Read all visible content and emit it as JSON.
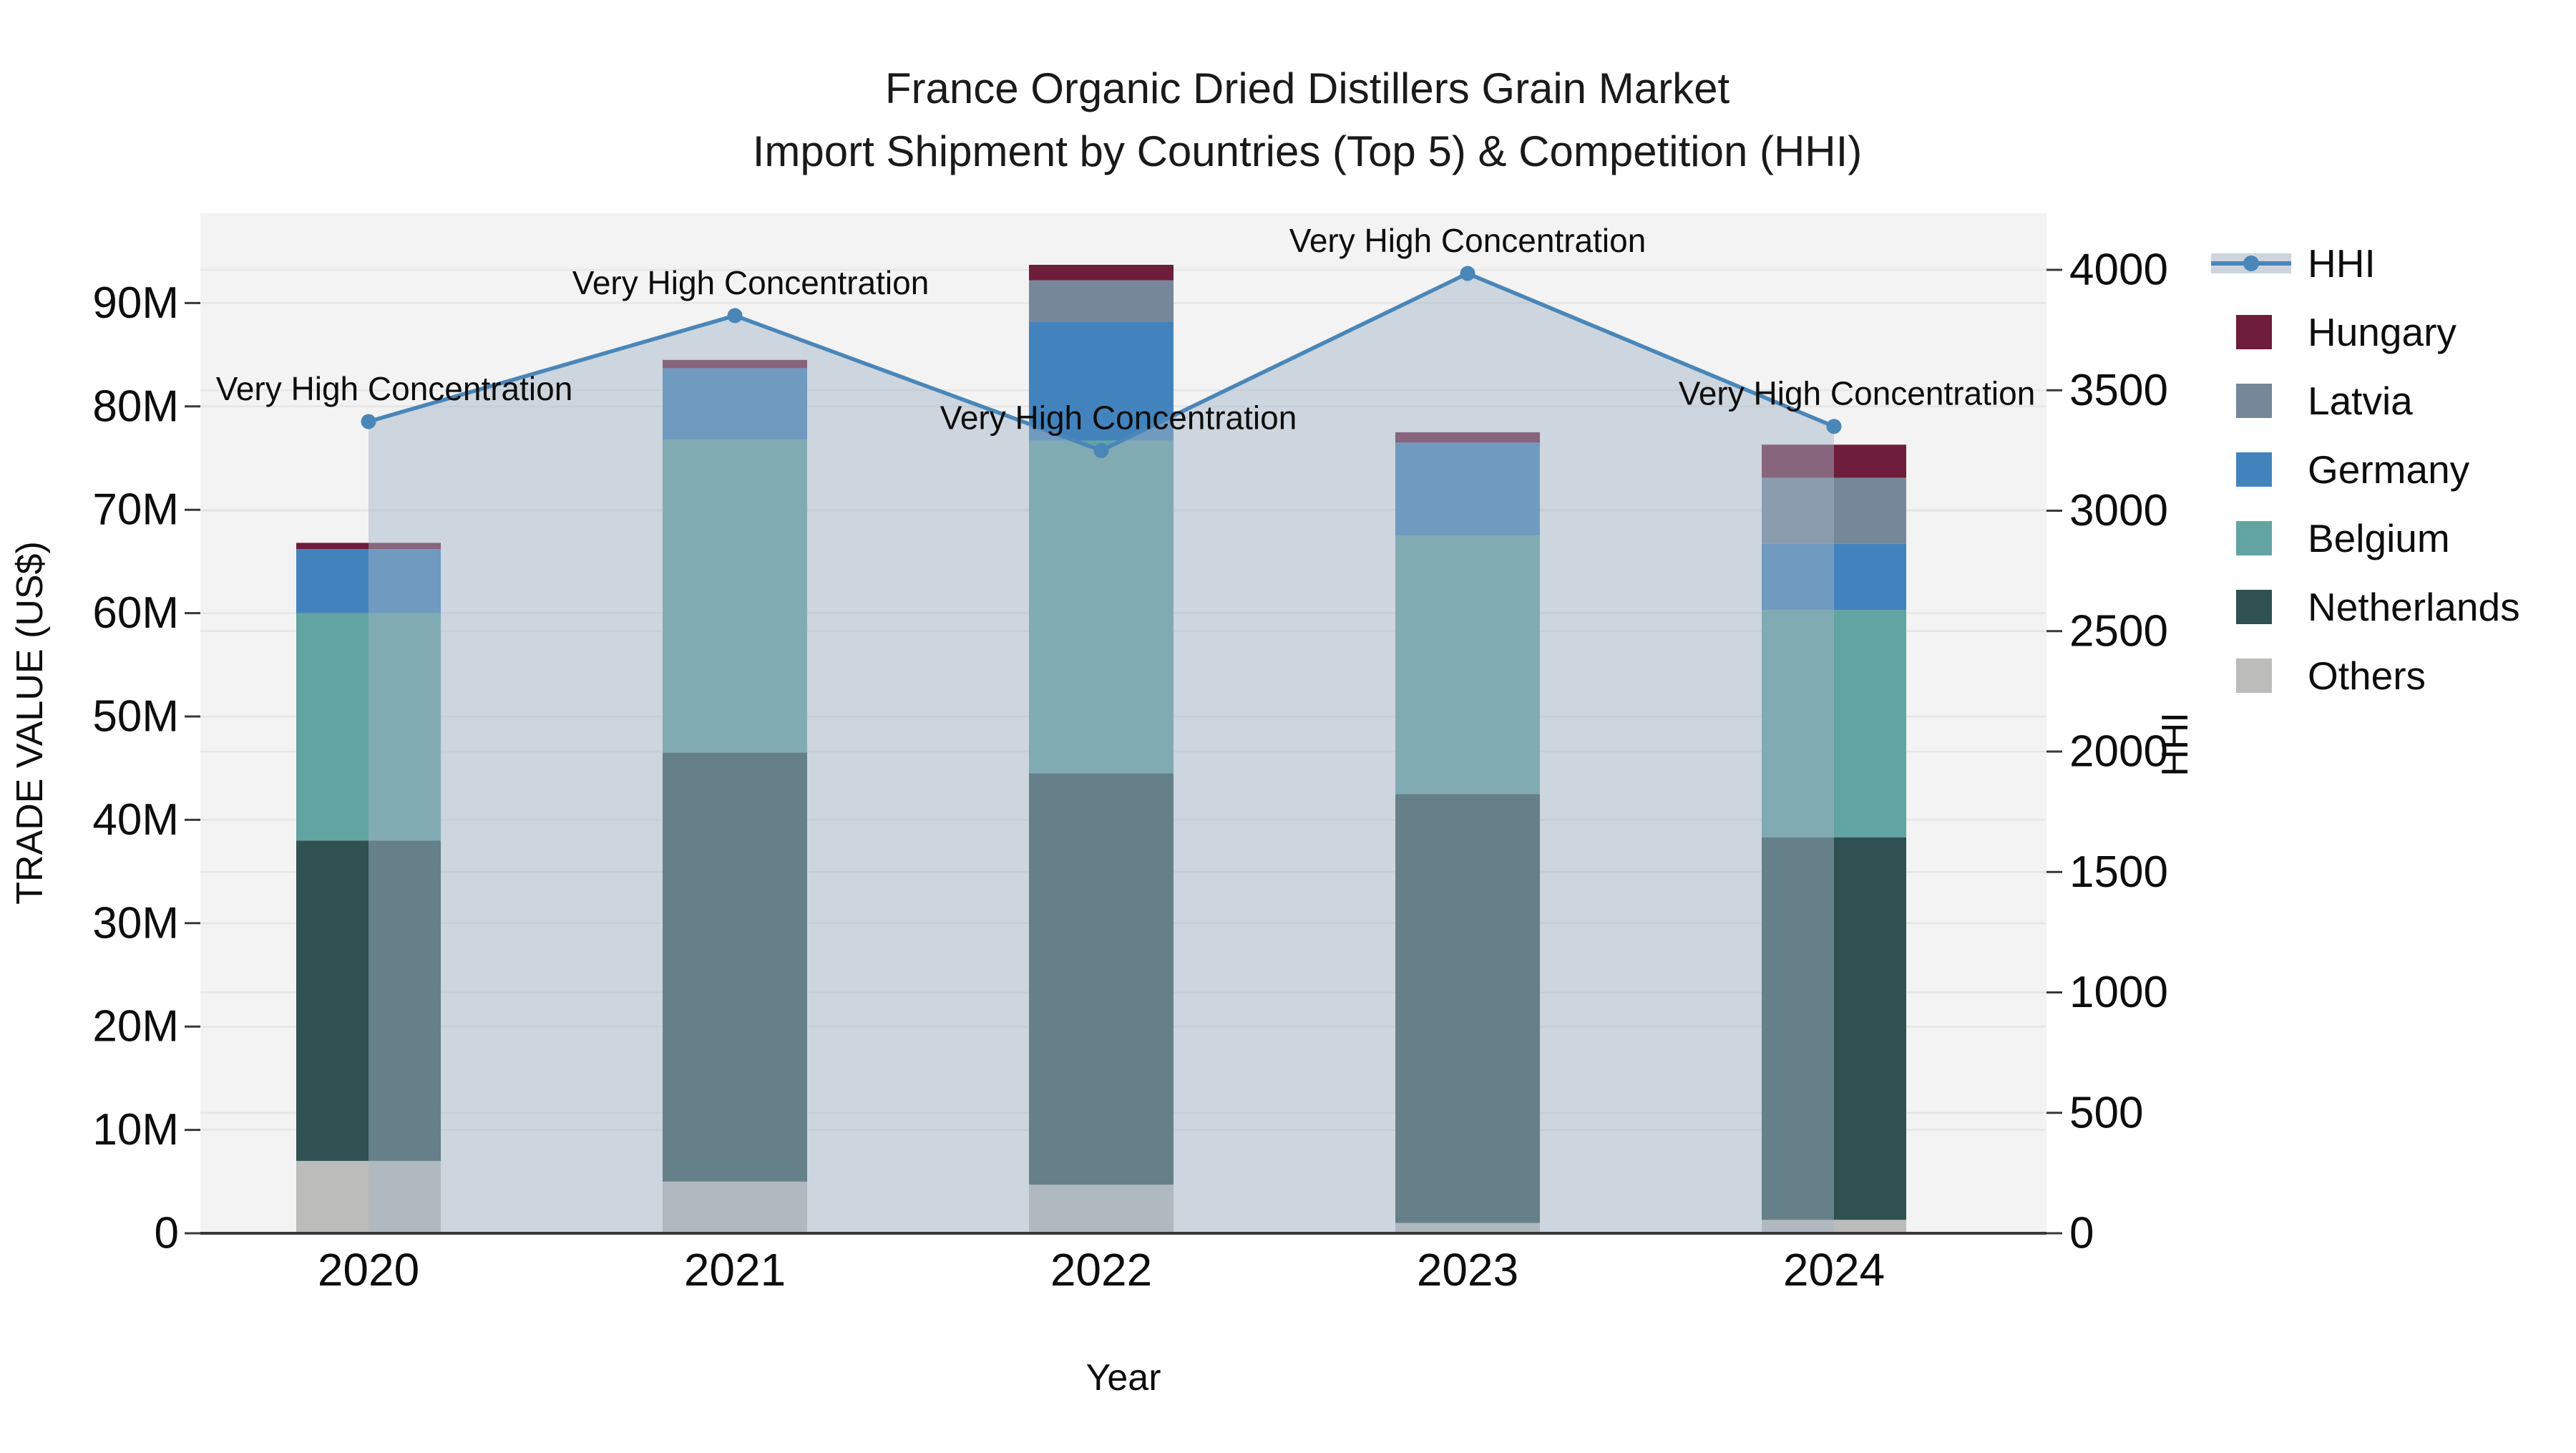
{
  "title": {
    "line1": "France Organic Dried Distillers Grain Market",
    "line2": "Import Shipment by Countries (Top 5) & Competition (HHI)"
  },
  "annotation_text": "Very High Concentration",
  "colors": {
    "hhi_line": "#4A86B8",
    "hhi_area": "rgba(163,179,199,0.48)",
    "hhi_legend_band": "#CDD4DE",
    "hungary": "#6E1D3B",
    "latvia": "#76879A",
    "germany": "#4383BD",
    "belgium": "#62A4A2",
    "netherlands": "#2F5151",
    "others": "#BCBCBA",
    "plot_background": "#F3F3F3",
    "gridline": "#E6E6E6",
    "axis_spine": "#383838",
    "text": "#0d0d0d"
  },
  "legend": [
    {
      "label": "HHI",
      "type": "line",
      "color": "#4A86B8"
    },
    {
      "label": "Hungary",
      "type": "swatch",
      "color": "#6E1D3B"
    },
    {
      "label": "Latvia",
      "type": "swatch",
      "color": "#76879A"
    },
    {
      "label": "Germany",
      "type": "swatch",
      "color": "#4383BD"
    },
    {
      "label": "Belgium",
      "type": "swatch",
      "color": "#62A4A2"
    },
    {
      "label": "Netherlands",
      "type": "swatch",
      "color": "#2F5151"
    },
    {
      "label": "Others",
      "type": "swatch",
      "color": "#BCBCBA"
    }
  ],
  "chart_data": {
    "type": "bar",
    "subtype": "stacked bars with dual-axis line overlay and shaded area",
    "categories": [
      "2020",
      "2021",
      "2022",
      "2023",
      "2024"
    ],
    "value_unit": "million US$",
    "series": [
      {
        "name": "Others",
        "color": "#BCBCBA",
        "values": [
          7.0,
          5.0,
          4.7,
          1.0,
          1.3
        ]
      },
      {
        "name": "Netherlands",
        "color": "#2F5151",
        "values": [
          31.0,
          41.5,
          39.8,
          41.5,
          37.0
        ]
      },
      {
        "name": "Belgium",
        "color": "#62A4A2",
        "values": [
          22.0,
          30.3,
          32.2,
          25.0,
          22.0
        ]
      },
      {
        "name": "Germany",
        "color": "#4383BD",
        "values": [
          6.2,
          6.9,
          11.5,
          9.0,
          6.4
        ]
      },
      {
        "name": "Latvia",
        "color": "#76879A",
        "values": [
          0,
          0,
          4.0,
          0,
          6.4
        ]
      },
      {
        "name": "Hungary",
        "color": "#6E1D3B",
        "values": [
          0.6,
          0.8,
          1.5,
          1.0,
          3.2
        ]
      }
    ],
    "bar_totals": [
      66.8,
      84.5,
      93.7,
      77.5,
      76.3
    ],
    "line_series": {
      "name": "HHI",
      "axis": "right",
      "color": "#4A86B8",
      "values": [
        3370,
        3810,
        3250,
        3985,
        3350
      ],
      "point_annotations": [
        "Very High Concentration",
        "Very High Concentration",
        "Very High Concentration",
        "Very High Concentration",
        "Very High Concentration"
      ]
    },
    "left_axis": {
      "title": "TRADE VALUE (US$)",
      "tick_values": [
        0,
        10,
        20,
        30,
        40,
        50,
        60,
        70,
        80,
        90
      ],
      "tick_labels": [
        "0",
        "10M",
        "20M",
        "30M",
        "40M",
        "50M",
        "60M",
        "70M",
        "80M",
        "90M"
      ],
      "max": 98.7
    },
    "right_axis": {
      "title": "HHI",
      "tick_values": [
        0,
        500,
        1000,
        1500,
        2000,
        2500,
        3000,
        3500,
        4000
      ],
      "tick_labels": [
        "0",
        "500",
        "1000",
        "1500",
        "2000",
        "2500",
        "3000",
        "3500",
        "4000"
      ],
      "max": 4235
    },
    "x_axis": {
      "title": "Year"
    },
    "grid": true,
    "legend_position": "right",
    "legend_order": [
      "HHI",
      "Hungary",
      "Latvia",
      "Germany",
      "Belgium",
      "Netherlands",
      "Others"
    ]
  }
}
